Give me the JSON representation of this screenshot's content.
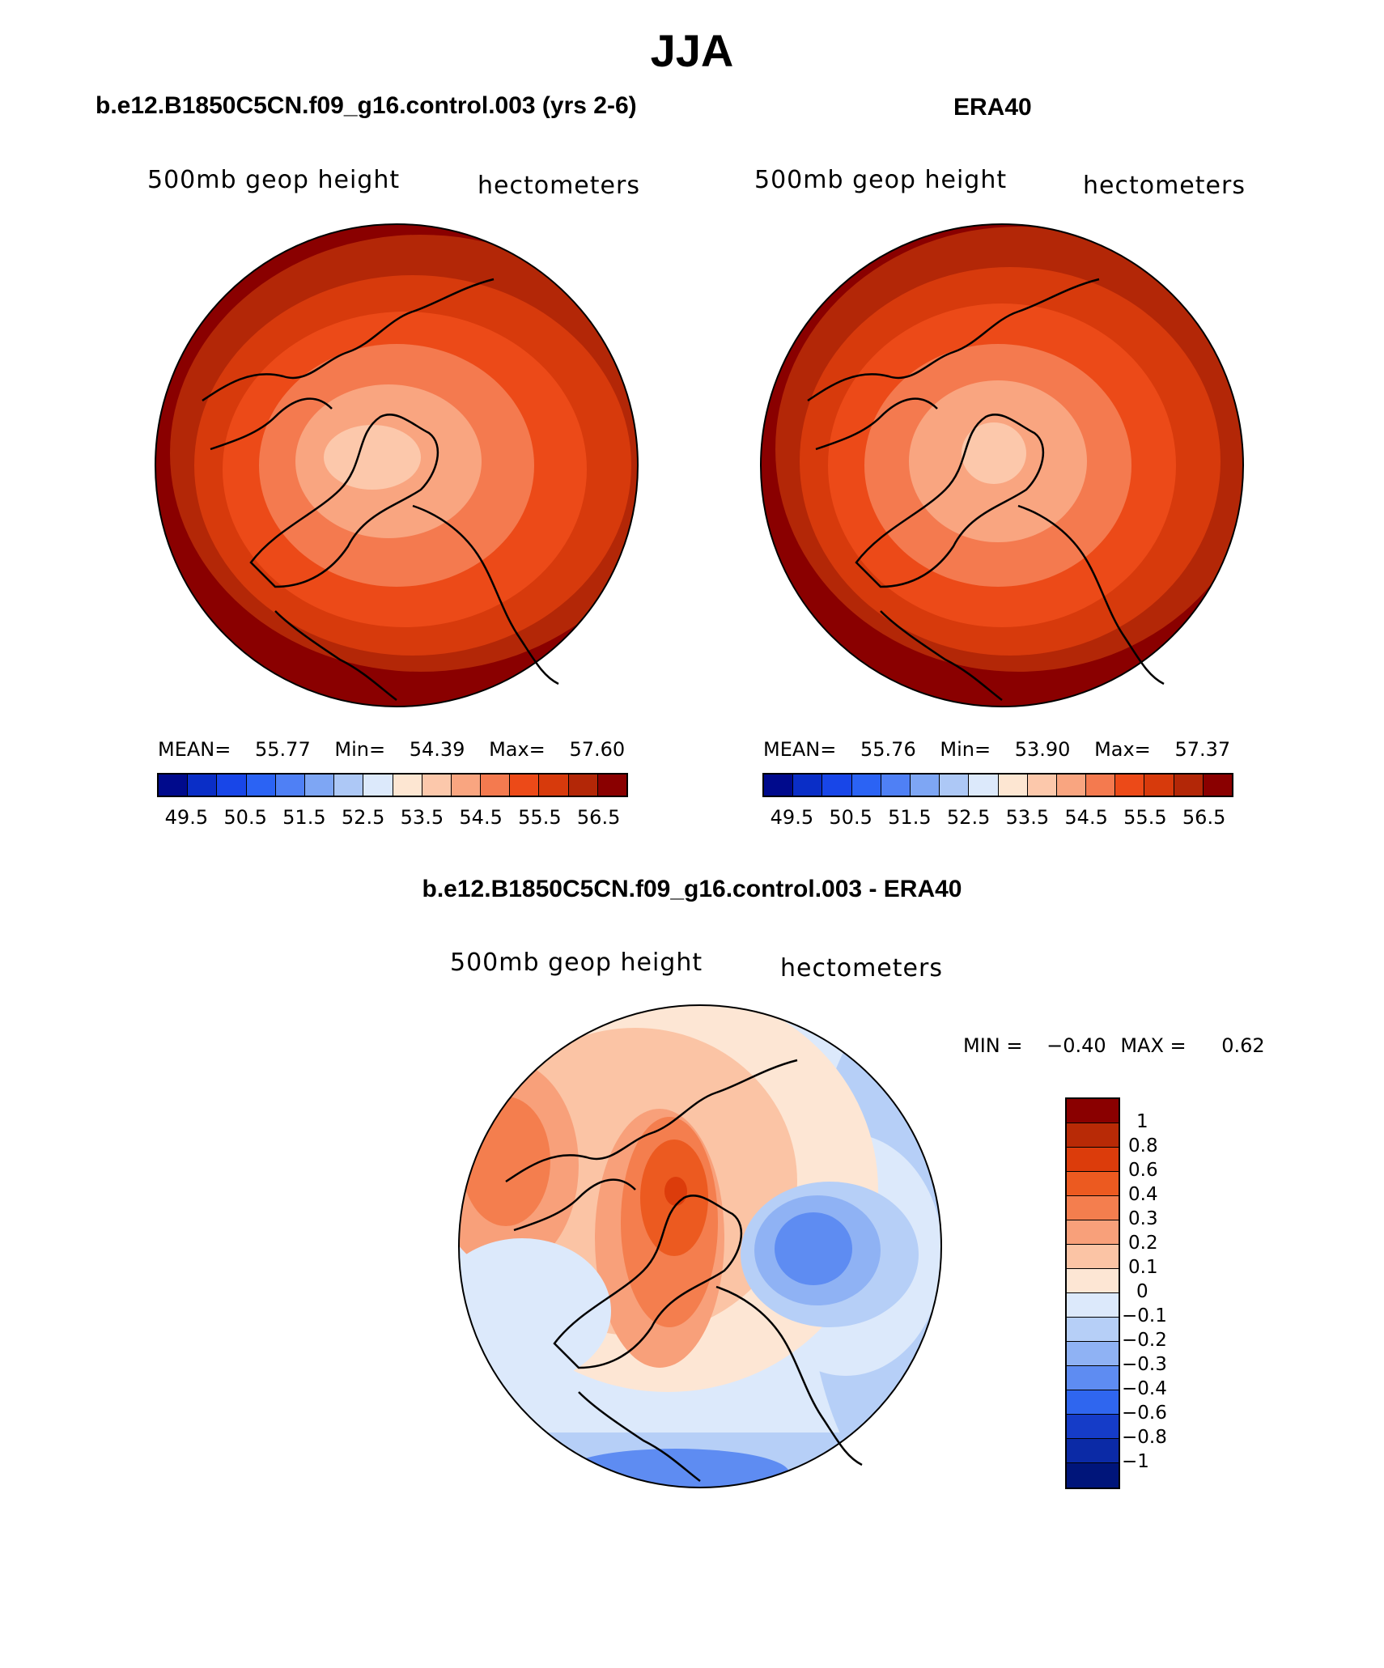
{
  "page_title": "JJA",
  "left_panel": {
    "title": "b.e12.B1850C5CN.f09_g16.control.003 (yrs 2-6)",
    "variable": "500mb geop height",
    "units": "hectometers",
    "mean_label": "MEAN=",
    "mean_value": "55.77",
    "min_label": "Min=",
    "min_value": "54.39",
    "max_label": "Max=",
    "max_value": "57.60"
  },
  "right_panel": {
    "title": "ERA40",
    "variable": "500mb geop height",
    "units": "hectometers",
    "mean_label": "MEAN=",
    "mean_value": "55.76",
    "min_label": "Min=",
    "min_value": "53.90",
    "max_label": "Max=",
    "max_value": "57.37"
  },
  "diff_panel": {
    "title": "b.e12.B1850C5CN.f09_g16.control.003 - ERA40",
    "variable": "500mb geop height",
    "units": "hectometers",
    "min_label": "MIN =",
    "min_value": "−0.40",
    "max_label": "MAX =",
    "max_value": "0.62"
  },
  "colorbar_abs": {
    "colors": [
      "#000a8c",
      "#0a2ec7",
      "#1846e8",
      "#2b63f4",
      "#4f80f5",
      "#7ea6f4",
      "#adc8f6",
      "#dce9fb",
      "#fde6d2",
      "#fcc8ab",
      "#f9a580",
      "#f47a4f",
      "#ec4a18",
      "#d73a0c",
      "#b32707",
      "#8a0000"
    ],
    "tick_labels": [
      "49.5",
      "50.5",
      "51.5",
      "52.5",
      "53.5",
      "54.5",
      "55.5",
      "56.5"
    ]
  },
  "colorbar_diff": {
    "colors": [
      "#8a0000",
      "#b82a06",
      "#dc3c0b",
      "#ec5a20",
      "#f47e4e",
      "#f8a07a",
      "#fbc4a5",
      "#fde6d4",
      "#dce9fb",
      "#b6cff7",
      "#8fb2f4",
      "#5e8cf2",
      "#2f66ef",
      "#153cc8",
      "#0b2aa6",
      "#00157a"
    ],
    "tick_labels": [
      "1",
      "0.8",
      "0.6",
      "0.4",
      "0.3",
      "0.2",
      "0.1",
      "0",
      "−0.1",
      "−0.2",
      "−0.3",
      "−0.4",
      "−0.6",
      "−0.8",
      "−1"
    ]
  }
}
